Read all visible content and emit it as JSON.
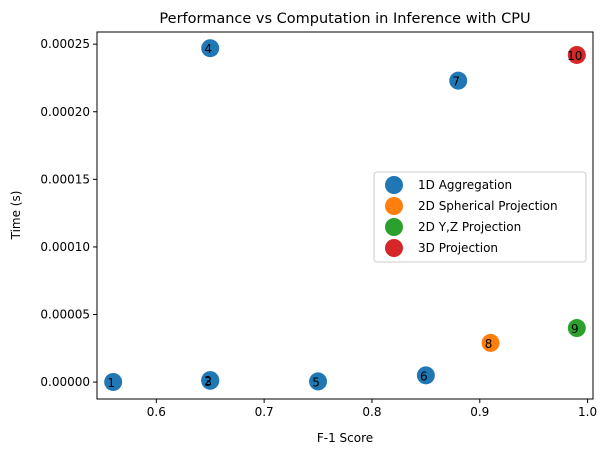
{
  "chart_data": {
    "type": "scatter",
    "title": "Performance vs Computation in Inference with CPU",
    "xlabel": "F-1 Score",
    "ylabel": "Time (s)",
    "xlim": [
      0.545,
      1.005
    ],
    "ylim": [
      -1.25e-05,
      0.000259
    ],
    "xticks": [
      "0.6",
      "0.7",
      "0.8",
      "0.9",
      "1.0"
    ],
    "xtick_values": [
      0.6,
      0.7,
      0.8,
      0.9,
      1.0
    ],
    "yticks": [
      "0.00000",
      "0.00005",
      "0.00010",
      "0.00015",
      "0.00020",
      "0.00025"
    ],
    "ytick_values": [
      0,
      5e-05,
      0.0001,
      0.00015,
      0.0002,
      0.00025
    ],
    "grid": false,
    "legend_position": "center-right",
    "series": [
      {
        "name": "1D Aggregation",
        "color": "#1f77b4",
        "points": [
          {
            "label": "1",
            "x": 0.56,
            "y": 1e-07
          },
          {
            "label": "2",
            "x": 0.65,
            "y": 1.5e-06
          },
          {
            "label": "3",
            "x": 0.65,
            "y": 1e-06
          },
          {
            "label": "4",
            "x": 0.65,
            "y": 0.000247
          },
          {
            "label": "5",
            "x": 0.75,
            "y": 5e-07
          },
          {
            "label": "6",
            "x": 0.85,
            "y": 5e-06
          },
          {
            "label": "7",
            "x": 0.88,
            "y": 0.000223
          }
        ]
      },
      {
        "name": "2D Spherical Projection",
        "color": "#ff7f0e",
        "points": [
          {
            "label": "8",
            "x": 0.91,
            "y": 2.9e-05
          }
        ]
      },
      {
        "name": "2D Y,Z Projection",
        "color": "#2ca02c",
        "points": [
          {
            "label": "9",
            "x": 0.99,
            "y": 4e-05
          }
        ]
      },
      {
        "name": "3D Projection",
        "color": "#d62728",
        "points": [
          {
            "label": "10",
            "x": 0.99,
            "y": 0.000242
          }
        ]
      }
    ]
  }
}
